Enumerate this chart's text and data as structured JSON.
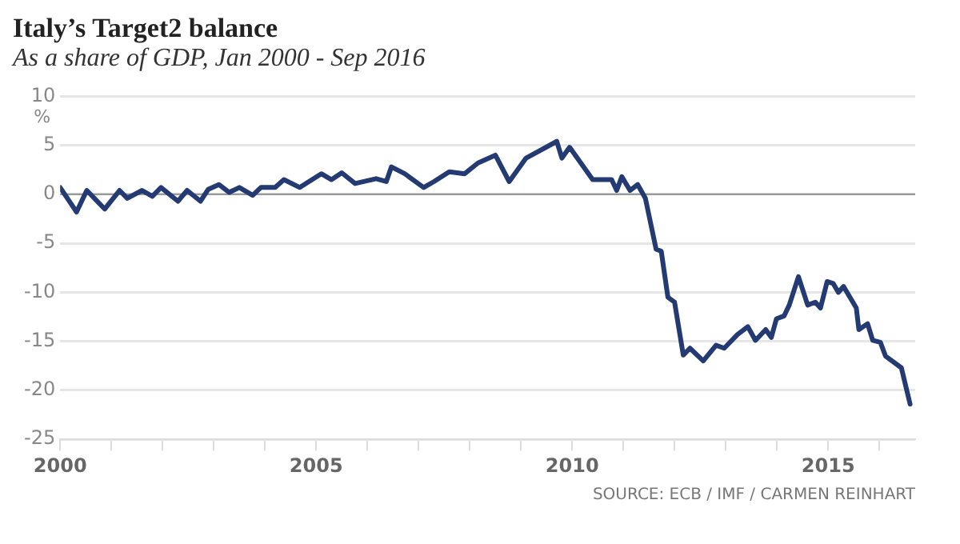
{
  "chart_data": {
    "type": "line",
    "title": "Italy’s Target2 balance",
    "subtitle": "As a share of GDP, Jan 2000 - Sep 2016",
    "ylabel": "%",
    "annotations": [
      "SOURCE: ECB / IMF / CARMEN REINHART"
    ],
    "series": [
      {
        "color": "#243a73",
        "x": [
          2000.0,
          2000.32,
          2000.52,
          2000.87,
          2001.16,
          2001.31,
          2001.6,
          2001.8,
          2001.97,
          2002.3,
          2002.48,
          2002.74,
          2002.89,
          2003.1,
          2003.3,
          2003.5,
          2003.76,
          2003.92,
          2004.2,
          2004.37,
          2004.68,
          2005.1,
          2005.3,
          2005.5,
          2005.76,
          2006.17,
          2006.37,
          2006.47,
          2006.73,
          2007.1,
          2007.3,
          2007.6,
          2007.9,
          2008.16,
          2008.5,
          2008.77,
          2009.1,
          2009.7,
          2009.8,
          2009.95,
          2010.4,
          2010.77,
          2010.87,
          2010.97,
          2011.13,
          2011.28,
          2011.43,
          2011.64,
          2011.74,
          2011.87,
          2012.0,
          2012.17,
          2012.3,
          2012.56,
          2012.81,
          2012.97,
          2013.23,
          2013.43,
          2013.58,
          2013.78,
          2013.89,
          2013.99,
          2014.14,
          2014.24,
          2014.42,
          2014.6,
          2014.75,
          2014.85,
          2014.98,
          2015.1,
          2015.2,
          2015.3,
          2015.55,
          2015.6,
          2015.77,
          2015.87,
          2016.02,
          2016.12,
          2016.43,
          2016.6
        ],
        "values": [
          0.7,
          -1.8,
          0.4,
          -1.5,
          0.4,
          -0.4,
          0.4,
          -0.2,
          0.7,
          -0.7,
          0.4,
          -0.7,
          0.5,
          1.0,
          0.2,
          0.7,
          -0.1,
          0.7,
          0.7,
          1.5,
          0.7,
          2.1,
          1.5,
          2.2,
          1.1,
          1.6,
          1.3,
          2.8,
          2.1,
          0.7,
          1.3,
          2.3,
          2.1,
          3.2,
          4.0,
          1.3,
          3.7,
          5.4,
          3.7,
          4.8,
          1.5,
          1.5,
          0.4,
          1.8,
          0.4,
          1.0,
          -0.4,
          -5.6,
          -5.8,
          -10.5,
          -11.0,
          -16.4,
          -15.7,
          -17.0,
          -15.4,
          -15.7,
          -14.3,
          -13.5,
          -14.9,
          -13.8,
          -14.6,
          -12.7,
          -12.4,
          -11.3,
          -8.4,
          -11.3,
          -11.0,
          -11.6,
          -8.9,
          -9.1,
          -10.0,
          -9.4,
          -11.6,
          -13.8,
          -13.2,
          -14.9,
          -15.1,
          -16.5,
          -17.7,
          -21.4
        ]
      }
    ],
    "xlim": [
      2000,
      2016.7
    ],
    "xticks": [
      2000,
      {
        "value": 2001,
        "label": null
      },
      {
        "value": 2002,
        "label": null
      },
      {
        "value": 2003,
        "label": null
      },
      {
        "value": 2004,
        "label": null
      },
      2005,
      {
        "value": 2006,
        "label": null
      },
      {
        "value": 2007,
        "label": null
      },
      {
        "value": 2008,
        "label": null
      },
      {
        "value": 2009,
        "label": null
      },
      2010,
      {
        "value": 2011,
        "label": null
      },
      {
        "value": 2012,
        "label": null
      },
      {
        "value": 2013,
        "label": null
      },
      {
        "value": 2014,
        "label": null
      },
      2015,
      {
        "value": 2016,
        "label": null
      }
    ],
    "ylim": [
      -25,
      10
    ],
    "yticks": [
      -25,
      -20,
      -15,
      -10,
      -5,
      0,
      5,
      10
    ],
    "grid": "y",
    "legend": false,
    "marker": "none",
    "line_style": "solid",
    "ref_lines": [
      {
        "axis": "y",
        "value": 0,
        "color": "#999999"
      }
    ]
  }
}
